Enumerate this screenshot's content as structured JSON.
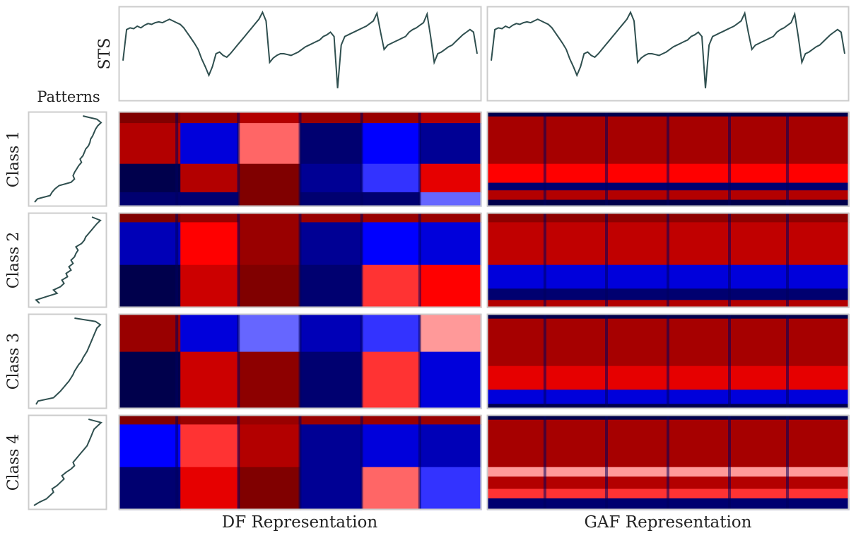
{
  "figure": {
    "patterns_title": "Patterns",
    "sts_label": "STS",
    "df_label": "DF Representation",
    "gaf_label": "GAF Representation",
    "row_labels": [
      "Class 1",
      "Class 2",
      "Class 3",
      "Class 4"
    ]
  },
  "colors": {
    "line": "#2f4f4f",
    "panel_border": "#cccccc",
    "heat_low": "#00004c",
    "heat_mid": "#ffffff",
    "heat_high": "#800000"
  },
  "chart_data": {
    "type": "heatmap",
    "colormap": "seismic",
    "grid": false,
    "sts_series": [
      0.42,
      0.78,
      0.8,
      0.79,
      0.82,
      0.8,
      0.83,
      0.85,
      0.84,
      0.86,
      0.87,
      0.86,
      0.88,
      0.9,
      0.88,
      0.86,
      0.84,
      0.8,
      0.74,
      0.68,
      0.62,
      0.55,
      0.44,
      0.35,
      0.25,
      0.35,
      0.5,
      0.52,
      0.48,
      0.46,
      0.5,
      0.55,
      0.6,
      0.65,
      0.7,
      0.75,
      0.8,
      0.85,
      0.9,
      0.98,
      0.88,
      0.4,
      0.45,
      0.48,
      0.5,
      0.5,
      0.49,
      0.48,
      0.5,
      0.52,
      0.55,
      0.58,
      0.6,
      0.62,
      0.64,
      0.66,
      0.7,
      0.72,
      0.75,
      0.7,
      0.1,
      0.6,
      0.7,
      0.72,
      0.74,
      0.76,
      0.78,
      0.8,
      0.82,
      0.85,
      0.88,
      0.97,
      0.75,
      0.55,
      0.6,
      0.62,
      0.64,
      0.66,
      0.68,
      0.7,
      0.75,
      0.78,
      0.8,
      0.83,
      0.86,
      0.96,
      0.7,
      0.4,
      0.5,
      0.52,
      0.55,
      0.58,
      0.6,
      0.64,
      0.68,
      0.72,
      0.75,
      0.78,
      0.75,
      0.5
    ],
    "patterns": [
      {
        "name": "Class 1",
        "values": [
          0.03,
          0.07,
          0.25,
          0.28,
          0.32,
          0.38,
          0.55,
          0.6,
          0.58,
          0.6,
          0.63,
          0.66,
          0.7,
          0.68,
          0.72,
          0.74,
          0.76,
          0.8,
          0.82,
          0.83,
          0.86,
          0.88,
          0.9,
          0.93,
          0.98,
          0.92,
          0.72
        ]
      },
      {
        "name": "Class 2",
        "values": [
          0.1,
          0.05,
          0.2,
          0.35,
          0.3,
          0.4,
          0.45,
          0.42,
          0.5,
          0.48,
          0.55,
          0.52,
          0.58,
          0.55,
          0.6,
          0.62,
          0.65,
          0.62,
          0.7,
          0.74,
          0.76,
          0.8,
          0.84,
          0.88,
          0.92,
          0.97,
          0.85
        ]
      },
      {
        "name": "Class 3",
        "values": [
          0.05,
          0.08,
          0.3,
          0.35,
          0.4,
          0.44,
          0.48,
          0.52,
          0.55,
          0.58,
          0.6,
          0.63,
          0.66,
          0.7,
          0.72,
          0.75,
          0.78,
          0.8,
          0.82,
          0.84,
          0.86,
          0.88,
          0.9,
          0.92,
          0.97,
          0.9,
          0.6
        ]
      },
      {
        "name": "Class 4",
        "values": [
          0.02,
          0.1,
          0.2,
          0.25,
          0.3,
          0.28,
          0.35,
          0.4,
          0.45,
          0.42,
          0.48,
          0.55,
          0.6,
          0.58,
          0.62,
          0.66,
          0.7,
          0.74,
          0.78,
          0.8,
          0.82,
          0.84,
          0.86,
          0.88,
          0.93,
          0.98,
          0.8
        ]
      }
    ],
    "df_maps": [
      {
        "name": "Class 1",
        "blocks": [
          [
            [
              0,
              0,
              0.17,
              0.12,
              1.0
            ],
            [
              0.17,
              0,
              0.33,
              0.12,
              0.9
            ],
            [
              0.33,
              0,
              0.5,
              0.12,
              0.8
            ],
            [
              0.5,
              0,
              0.67,
              0.12,
              0.9
            ],
            [
              0.67,
              0,
              0.83,
              0.12,
              0.9
            ],
            [
              0.83,
              0,
              1,
              0.12,
              0.8
            ],
            [
              0,
              0.12,
              0.17,
              0.55,
              0.8
            ],
            [
              0.17,
              0.12,
              0.33,
              0.55,
              -0.6
            ],
            [
              0.33,
              0.12,
              0.5,
              0.55,
              0.3
            ],
            [
              0.5,
              0.12,
              0.67,
              0.55,
              -0.9
            ],
            [
              0.67,
              0.12,
              0.83,
              0.55,
              -0.5
            ],
            [
              0.83,
              0.12,
              1,
              0.55,
              -0.8
            ],
            [
              0,
              0.55,
              0.17,
              0.85,
              -1.0
            ],
            [
              0.17,
              0.55,
              0.33,
              0.85,
              0.8
            ],
            [
              0.33,
              0.55,
              0.5,
              0.85,
              1.0
            ],
            [
              0.5,
              0.55,
              0.67,
              0.85,
              -0.8
            ],
            [
              0.67,
              0.55,
              0.83,
              0.85,
              -0.4
            ],
            [
              0.83,
              0.55,
              1,
              0.85,
              0.6
            ],
            [
              0,
              0.85,
              0.17,
              1,
              -0.9
            ],
            [
              0.17,
              0.85,
              0.33,
              1,
              -0.9
            ],
            [
              0.33,
              0.85,
              0.5,
              1,
              1.0
            ],
            [
              0.5,
              0.85,
              0.67,
              1,
              -0.9
            ],
            [
              0.67,
              0.85,
              0.83,
              1,
              -0.9
            ],
            [
              0.83,
              0.85,
              1,
              1,
              -0.3
            ]
          ]
        ]
      },
      {
        "name": "Class 2",
        "blocks": [
          [
            [
              0,
              0,
              0.17,
              0.1,
              1.0
            ],
            [
              0.17,
              0,
              0.5,
              0.1,
              0.9
            ],
            [
              0.5,
              0,
              1,
              0.1,
              0.9
            ],
            [
              0,
              0.1,
              0.17,
              0.55,
              -0.7
            ],
            [
              0.17,
              0.1,
              0.33,
              0.55,
              0.5
            ],
            [
              0.33,
              0.1,
              0.5,
              0.55,
              0.9
            ],
            [
              0.5,
              0.1,
              0.67,
              0.55,
              -0.8
            ],
            [
              0.67,
              0.1,
              0.83,
              0.55,
              -0.5
            ],
            [
              0.83,
              0.1,
              1,
              0.55,
              -0.6
            ],
            [
              0,
              0.55,
              0.17,
              1,
              -1.0
            ],
            [
              0.17,
              0.55,
              0.33,
              1,
              0.7
            ],
            [
              0.33,
              0.55,
              0.5,
              1,
              1.0
            ],
            [
              0.5,
              0.55,
              0.67,
              1,
              -0.9
            ],
            [
              0.67,
              0.55,
              0.83,
              1,
              0.4
            ],
            [
              0.83,
              0.55,
              1,
              1,
              0.5
            ]
          ]
        ]
      },
      {
        "name": "Class 3",
        "blocks": [
          [
            [
              0,
              0,
              0.17,
              0.4,
              0.9
            ],
            [
              0.17,
              0,
              0.33,
              0.4,
              -0.6
            ],
            [
              0.33,
              0,
              0.5,
              0.4,
              -0.3
            ],
            [
              0.5,
              0,
              0.67,
              0.4,
              -0.7
            ],
            [
              0.67,
              0,
              0.83,
              0.4,
              -0.4
            ],
            [
              0.83,
              0,
              1,
              0.4,
              0.2
            ],
            [
              0,
              0.4,
              0.17,
              1,
              -1.0
            ],
            [
              0.17,
              0.4,
              0.33,
              1,
              0.7
            ],
            [
              0.33,
              0.4,
              0.5,
              1,
              0.95
            ],
            [
              0.5,
              0.4,
              0.67,
              1,
              -0.9
            ],
            [
              0.67,
              0.4,
              0.83,
              1,
              0.4
            ],
            [
              0.83,
              0.4,
              1,
              1,
              -0.6
            ]
          ]
        ]
      },
      {
        "name": "Class 4",
        "blocks": [
          [
            [
              0,
              0,
              0.17,
              0.1,
              1.0
            ],
            [
              0.17,
              0,
              1,
              0.1,
              0.9
            ],
            [
              0,
              0.1,
              0.17,
              0.55,
              -0.5
            ],
            [
              0.17,
              0.1,
              0.33,
              0.55,
              0.4
            ],
            [
              0.33,
              0.1,
              0.5,
              0.55,
              0.8
            ],
            [
              0.5,
              0.1,
              0.67,
              0.55,
              -0.8
            ],
            [
              0.67,
              0.1,
              0.83,
              0.55,
              -0.6
            ],
            [
              0.83,
              0.1,
              1,
              0.55,
              -0.7
            ],
            [
              0,
              0.55,
              0.17,
              1,
              -0.9
            ],
            [
              0.17,
              0.55,
              0.33,
              1,
              0.6
            ],
            [
              0.33,
              0.55,
              0.5,
              1,
              1.0
            ],
            [
              0.5,
              0.55,
              0.67,
              1,
              -0.8
            ],
            [
              0.67,
              0.55,
              0.83,
              1,
              0.3
            ],
            [
              0.83,
              0.55,
              1,
              1,
              -0.4
            ]
          ]
        ]
      }
    ],
    "gaf_maps": [
      {
        "name": "Class 1",
        "blocks": [
          [
            [
              0,
              0,
              1,
              0.05,
              -1.0
            ],
            [
              0,
              0.05,
              1,
              0.55,
              0.85
            ],
            [
              0,
              0.55,
              1,
              0.75,
              0.5
            ],
            [
              0,
              0.75,
              1,
              0.83,
              -0.9
            ],
            [
              0,
              0.83,
              1,
              0.93,
              0.8
            ],
            [
              0,
              0.93,
              1,
              1,
              -1.0
            ]
          ]
        ]
      },
      {
        "name": "Class 2",
        "blocks": [
          [
            [
              0,
              0,
              1,
              0.1,
              0.95
            ],
            [
              0,
              0.1,
              1,
              0.55,
              0.75
            ],
            [
              0,
              0.55,
              1,
              0.8,
              -0.6
            ],
            [
              0,
              0.8,
              1,
              0.92,
              -0.9
            ],
            [
              0,
              0.92,
              1,
              1,
              0.8
            ]
          ]
        ]
      },
      {
        "name": "Class 3",
        "blocks": [
          [
            [
              0,
              0,
              1,
              0.05,
              -1.0
            ],
            [
              0,
              0.05,
              1,
              0.55,
              0.85
            ],
            [
              0,
              0.55,
              1,
              0.8,
              0.6
            ],
            [
              0,
              0.8,
              1,
              0.95,
              -0.6
            ],
            [
              0,
              0.95,
              1,
              1,
              -1.0
            ]
          ]
        ]
      },
      {
        "name": "Class 4",
        "blocks": [
          [
            [
              0,
              0,
              1,
              0.05,
              -1.0
            ],
            [
              0,
              0.05,
              1,
              0.55,
              0.85
            ],
            [
              0,
              0.55,
              1,
              0.65,
              0.2
            ],
            [
              0,
              0.65,
              1,
              0.78,
              0.8
            ],
            [
              0,
              0.78,
              1,
              0.88,
              0.4
            ],
            [
              0,
              0.88,
              1,
              1,
              -0.9
            ]
          ]
        ]
      }
    ],
    "column_breaks": [
      0.16,
      0.33,
      0.5,
      0.67,
      0.83
    ]
  }
}
